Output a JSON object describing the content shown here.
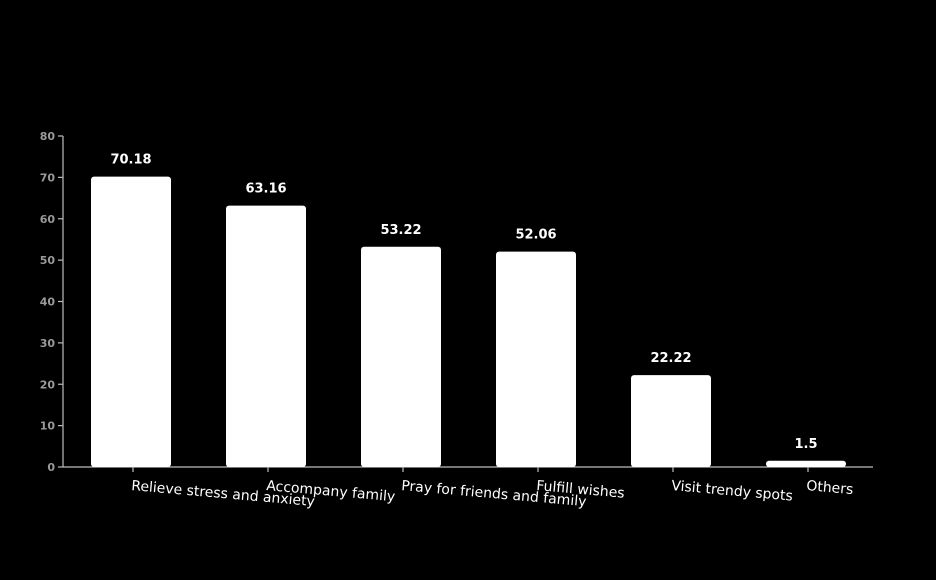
{
  "chart_data": {
    "type": "bar",
    "categories": [
      "Relieve stress and anxiety",
      "Accompany family",
      "Pray for friends and family",
      "Fulfill wishes",
      "Visit trendy spots",
      "Others"
    ],
    "values": [
      70.18,
      63.16,
      53.22,
      52.06,
      22.22,
      1.5
    ],
    "value_labels": [
      "70.18",
      "63.16",
      "53.22",
      "52.06",
      "22.22",
      "1.5"
    ],
    "yticks": [
      0,
      10,
      20,
      30,
      40,
      50,
      60,
      70,
      80
    ],
    "ylim": [
      0,
      80
    ],
    "grid": false,
    "legend": "none",
    "colors": {
      "background": "#000000",
      "bar": "#ffffff",
      "axis": "#bdbdbd",
      "tick_text": "#9a9a9a",
      "label_text": "#ffffff"
    }
  }
}
